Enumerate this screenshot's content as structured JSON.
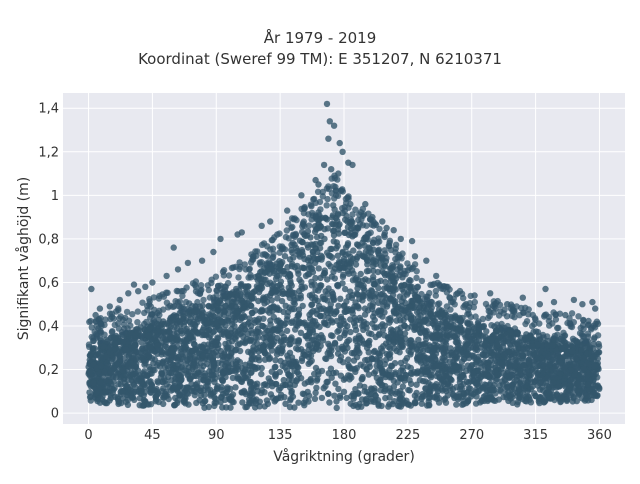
{
  "chart_data": {
    "type": "scatter",
    "title_lines": [
      "År 1979 - 2019",
      "Koordinat (Sweref 99 TM): E 351207, N 6210371"
    ],
    "xlabel": "Vågriktning (grader)",
    "ylabel": "Signifikant våghöjd (m)",
    "xlim": [
      -18,
      378
    ],
    "ylim": [
      -0.05,
      1.47
    ],
    "xticks": [
      0,
      45,
      90,
      135,
      180,
      225,
      270,
      315,
      360
    ],
    "xtick_labels": [
      "0",
      "45",
      "90",
      "135",
      "180",
      "225",
      "270",
      "315",
      "360"
    ],
    "yticks": [
      0,
      0.2,
      0.4,
      0.6,
      0.8,
      1.0,
      1.2,
      1.4
    ],
    "ytick_labels": [
      "0",
      "0,2",
      "0,4",
      "0,6",
      "0,8",
      "1",
      "1,2",
      "1,4"
    ],
    "grid": true,
    "background": "#e8e9f0",
    "marker_color": "#33566c",
    "dense_envelope": {
      "x": [
        0,
        20,
        45,
        60,
        90,
        110,
        135,
        150,
        165,
        172,
        180,
        190,
        200,
        225,
        240,
        270,
        300,
        315,
        340,
        360
      ],
      "y_low": [
        0.05,
        0.04,
        0.03,
        0.03,
        0.02,
        0.02,
        0.02,
        0.02,
        0.02,
        0.02,
        0.02,
        0.02,
        0.02,
        0.03,
        0.03,
        0.04,
        0.04,
        0.04,
        0.05,
        0.06
      ],
      "y_high": [
        0.3,
        0.36,
        0.42,
        0.45,
        0.52,
        0.6,
        0.72,
        0.82,
        0.92,
        0.98,
        0.92,
        0.85,
        0.78,
        0.6,
        0.5,
        0.42,
        0.38,
        0.35,
        0.34,
        0.32
      ]
    },
    "outliers": {
      "x": [
        168,
        170,
        173,
        169,
        177,
        179,
        171,
        166,
        183,
        186,
        176,
        160,
        162,
        150,
        157,
        140,
        128,
        122,
        108,
        105,
        93,
        88,
        80,
        70,
        63,
        55,
        60,
        45,
        40,
        35,
        32,
        28,
        22,
        15,
        8,
        2,
        5,
        195,
        200,
        207,
        210,
        215,
        220,
        228,
        230,
        238,
        245,
        252,
        260,
        266,
        272,
        283,
        286,
        295,
        300,
        306,
        318,
        322,
        328,
        336,
        342,
        348,
        355,
        357,
        359
      ],
      "y": [
        1.42,
        1.34,
        1.32,
        1.26,
        1.24,
        1.2,
        1.12,
        1.14,
        1.15,
        1.14,
        1.1,
        1.07,
        1.05,
        1.0,
        0.95,
        0.93,
        0.88,
        0.86,
        0.83,
        0.82,
        0.8,
        0.74,
        0.7,
        0.69,
        0.66,
        0.63,
        0.76,
        0.6,
        0.58,
        0.56,
        0.59,
        0.55,
        0.52,
        0.49,
        0.48,
        0.57,
        0.45,
        0.96,
        0.9,
        0.88,
        0.85,
        0.84,
        0.8,
        0.79,
        0.72,
        0.7,
        0.63,
        0.58,
        0.55,
        0.5,
        0.54,
        0.55,
        0.5,
        0.5,
        0.47,
        0.53,
        0.5,
        0.57,
        0.51,
        0.45,
        0.52,
        0.5,
        0.51,
        0.48,
        0.41
      ]
    }
  }
}
